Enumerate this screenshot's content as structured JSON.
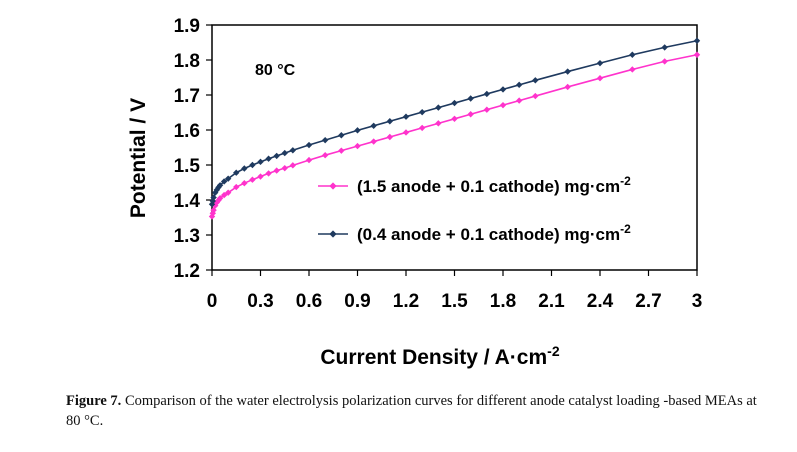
{
  "chart_data": {
    "type": "line",
    "xlabel": "Current Density / A·cm",
    "xlabel_sup": "-2",
    "ylabel": "Potential / V",
    "annotation": "80 °C",
    "xlim": [
      0,
      3
    ],
    "ylim": [
      1.2,
      1.9
    ],
    "x_ticks": [
      "0",
      "0.3",
      "0.6",
      "0.9",
      "1.2",
      "1.5",
      "1.8",
      "2.1",
      "2.4",
      "2.7",
      "3"
    ],
    "y_ticks": [
      "1.2",
      "1.3",
      "1.4",
      "1.5",
      "1.6",
      "1.7",
      "1.8",
      "1.9"
    ],
    "grid": false,
    "legend_position": "center-right",
    "series": [
      {
        "name": "(1.5 anode + 0.1 cathode) mg·cm",
        "name_sup": "-2",
        "color": "#ff33cc",
        "marker": "diamond",
        "x": [
          0.0,
          0.005,
          0.01,
          0.02,
          0.03,
          0.04,
          0.05,
          0.075,
          0.1,
          0.15,
          0.2,
          0.25,
          0.3,
          0.35,
          0.4,
          0.45,
          0.5,
          0.6,
          0.7,
          0.8,
          0.9,
          1.0,
          1.1,
          1.2,
          1.3,
          1.4,
          1.5,
          1.6,
          1.7,
          1.8,
          1.9,
          2.0,
          2.2,
          2.4,
          2.6,
          2.8,
          3.0
        ],
        "y": [
          1.353,
          1.362,
          1.371,
          1.384,
          1.393,
          1.399,
          1.405,
          1.414,
          1.421,
          1.437,
          1.448,
          1.458,
          1.467,
          1.476,
          1.484,
          1.491,
          1.499,
          1.514,
          1.528,
          1.541,
          1.554,
          1.567,
          1.58,
          1.593,
          1.606,
          1.619,
          1.632,
          1.645,
          1.658,
          1.671,
          1.684,
          1.697,
          1.723,
          1.748,
          1.773,
          1.796,
          1.815
        ]
      },
      {
        "name": "(0.4 anode + 0.1 cathode) mg·cm",
        "name_sup": "-2",
        "color": "#1f3a5f",
        "marker": "diamond",
        "x": [
          0.0,
          0.005,
          0.01,
          0.02,
          0.03,
          0.04,
          0.05,
          0.075,
          0.1,
          0.15,
          0.2,
          0.25,
          0.3,
          0.35,
          0.4,
          0.45,
          0.5,
          0.6,
          0.7,
          0.8,
          0.9,
          1.0,
          1.1,
          1.2,
          1.3,
          1.4,
          1.5,
          1.6,
          1.7,
          1.8,
          1.9,
          2.0,
          2.2,
          2.4,
          2.6,
          2.8,
          3.0
        ],
        "y": [
          1.388,
          1.397,
          1.407,
          1.421,
          1.429,
          1.436,
          1.442,
          1.453,
          1.461,
          1.478,
          1.49,
          1.5,
          1.509,
          1.518,
          1.526,
          1.534,
          1.542,
          1.557,
          1.571,
          1.585,
          1.599,
          1.612,
          1.625,
          1.638,
          1.651,
          1.664,
          1.677,
          1.69,
          1.703,
          1.716,
          1.729,
          1.742,
          1.767,
          1.791,
          1.815,
          1.836,
          1.855
        ]
      }
    ]
  },
  "caption": {
    "label": "Figure 7.",
    "text": " Comparison of the water electrolysis polarization curves for different anode catalyst loading -based MEAs at 80 °C."
  }
}
